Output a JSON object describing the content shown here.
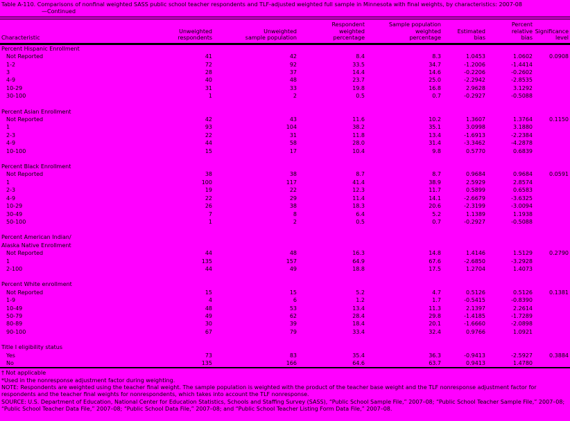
{
  "colors": {
    "background": "#ff00ff",
    "text": "#000000",
    "rule": "#000000"
  },
  "title": {
    "line1": "Table A-110. Comparisons of nonfinal weighted SASS public school teacher respondents and TLF-adjusted weighted full sample in Minnesota with final weights, by characteristics: 2007-08",
    "line2": "—Continued"
  },
  "header": {
    "characteristic": "Characteristic",
    "columns": [
      [
        "Unweighted",
        "respondents"
      ],
      [
        "Unweighted",
        "sample population"
      ],
      [
        "Respondent",
        "weighted",
        "percentage"
      ],
      [
        "Sample population",
        "weighted",
        "percentage"
      ],
      [
        "Estimated",
        "bias"
      ],
      [
        "Percent",
        "relative",
        "bias"
      ],
      [
        "Significance",
        "level"
      ]
    ]
  },
  "table": {
    "sections": [
      {
        "label_lines": [
          "Percent Hispanic Enrollment"
        ],
        "rows": [
          {
            "label": "Not Reported",
            "values": [
              "41",
              "42",
              "8.4",
              "8.3",
              "1.0453",
              "1.0602",
              "0.0908"
            ]
          },
          {
            "label": "1-2",
            "values": [
              "72",
              "92",
              "33.5",
              "34.7",
              "-1.2006",
              "-1.4414",
              ""
            ]
          },
          {
            "label": "3",
            "values": [
              "28",
              "37",
              "14.4",
              "14.6",
              "-0.2206",
              "-0.2602",
              ""
            ]
          },
          {
            "label": "4-9",
            "values": [
              "40",
              "48",
              "23.7",
              "25.0",
              "-2.2942",
              "-2.8535",
              ""
            ]
          },
          {
            "label": "10-29",
            "values": [
              "31",
              "33",
              "19.8",
              "16.8",
              "2.9628",
              "3.1292",
              ""
            ]
          },
          {
            "label": "30-100",
            "values": [
              "1",
              "2",
              "0.5",
              "0.7",
              "-0.2927",
              "-0.5088",
              ""
            ]
          }
        ]
      },
      {
        "label_lines": [
          "Percent Asian Enrollment"
        ],
        "rows": [
          {
            "label": "Not Reported",
            "values": [
              "42",
              "43",
              "11.6",
              "10.2",
              "1.3607",
              "1.3764",
              "0.1150"
            ]
          },
          {
            "label": "1",
            "values": [
              "93",
              "104",
              "38.2",
              "35.1",
              "3.0998",
              "3.1880",
              ""
            ]
          },
          {
            "label": "2-3",
            "values": [
              "22",
              "31",
              "11.8",
              "13.4",
              "-1.6913",
              "-2.2384",
              ""
            ]
          },
          {
            "label": "4-9",
            "values": [
              "44",
              "58",
              "28.0",
              "31.4",
              "-3.3462",
              "-4.2878",
              ""
            ]
          },
          {
            "label": "10-100",
            "values": [
              "15",
              "17",
              "10.4",
              "9.8",
              "0.5770",
              "0.6839",
              ""
            ]
          }
        ]
      },
      {
        "label_lines": [
          "Percent Black Enrollment"
        ],
        "rows": [
          {
            "label": "Not Reported",
            "values": [
              "38",
              "38",
              "8.7",
              "8.7",
              "0.9684",
              "0.9684",
              "0.0591"
            ]
          },
          {
            "label": "1",
            "values": [
              "100",
              "117",
              "41.4",
              "38.9",
              "2.5929",
              "2.8574",
              ""
            ]
          },
          {
            "label": "2-3",
            "values": [
              "19",
              "22",
              "12.3",
              "11.7",
              "0.5899",
              "0.6583",
              ""
            ]
          },
          {
            "label": "4-9",
            "values": [
              "22",
              "29",
              "11.4",
              "14.1",
              "-2.6679",
              "-3.6325",
              ""
            ]
          },
          {
            "label": "10-29",
            "values": [
              "26",
              "38",
              "18.3",
              "20.6",
              "-2.3199",
              "-3.0094",
              ""
            ]
          },
          {
            "label": "30-49",
            "values": [
              "7",
              "8",
              "6.4",
              "5.2",
              "1.1389",
              "1.1938",
              ""
            ]
          },
          {
            "label": "50-100",
            "values": [
              "1",
              "2",
              "0.5",
              "0.7",
              "-0.2927",
              "-0.5088",
              ""
            ]
          }
        ]
      },
      {
        "label_lines": [
          "Percent American Indian/",
          "Alaska Native Enrollment"
        ],
        "rows": [
          {
            "label": "Not Reported",
            "values": [
              "44",
              "48",
              "16.3",
              "14.8",
              "1.4146",
              "1.5129",
              "0.2790"
            ]
          },
          {
            "label": "1",
            "values": [
              "135",
              "157",
              "64.9",
              "67.6",
              "-2.6850",
              "-3.2928",
              ""
            ]
          },
          {
            "label": "2-100",
            "values": [
              "44",
              "49",
              "18.8",
              "17.5",
              "1.2704",
              "1.4073",
              ""
            ]
          }
        ]
      },
      {
        "label_lines": [
          "Percent White enrollment"
        ],
        "rows": [
          {
            "label": "Not Reported",
            "values": [
              "15",
              "15",
              "5.2",
              "4.7",
              "0.5126",
              "0.5126",
              "0.1381"
            ]
          },
          {
            "label": "1-9",
            "values": [
              "4",
              "6",
              "1.2",
              "1.7",
              "-0.5415",
              "-0.8390",
              ""
            ]
          },
          {
            "label": "10-49",
            "values": [
              "48",
              "53",
              "13.4",
              "11.3",
              "2.1397",
              "2.2614",
              ""
            ]
          },
          {
            "label": "50-79",
            "values": [
              "49",
              "62",
              "28.4",
              "29.8",
              "-1.4185",
              "-1.7289",
              ""
            ]
          },
          {
            "label": "80-89",
            "values": [
              "30",
              "39",
              "18.4",
              "20.1",
              "-1.6660",
              "-2.0898",
              ""
            ]
          },
          {
            "label": "90-100",
            "values": [
              "67",
              "79",
              "33.4",
              "32.4",
              "0.9766",
              "1.0921",
              ""
            ]
          }
        ]
      },
      {
        "label_lines": [
          "Title I eligibility status"
        ],
        "rows": [
          {
            "label": "Yes",
            "values": [
              "73",
              "83",
              "35.4",
              "36.3",
              "-0.9413",
              "-2.5927",
              "0.3884"
            ]
          },
          {
            "label": "No",
            "values": [
              "135",
              "166",
              "64.6",
              "63.7",
              "0.9413",
              "1.4780",
              ""
            ]
          }
        ]
      }
    ]
  },
  "footnotes": [
    "† Not applicable",
    "*Used in the nonresponse adjustment factor during weighting.",
    "NOTE: Respondents are weighted using the teacher final weight. The sample population is weighted with the product of the teacher base weight and the TLF nonresponse adjustment factor for respondents and the teacher final weights for nonrespondents, which takes into account the TLF nonresponse.",
    "SOURCE: U.S. Department of Education, National Center for Education Statistics, Schools and Staffing Survey (SASS), “Public School Sample File,” 2007–08; “Public School Teacher Sample File,” 2007–08; “Public School Teacher Data File,” 2007–08; “Public School Data File,” 2007–08; and “Public School Teacher Listing Form Data File,” 2007–08."
  ]
}
